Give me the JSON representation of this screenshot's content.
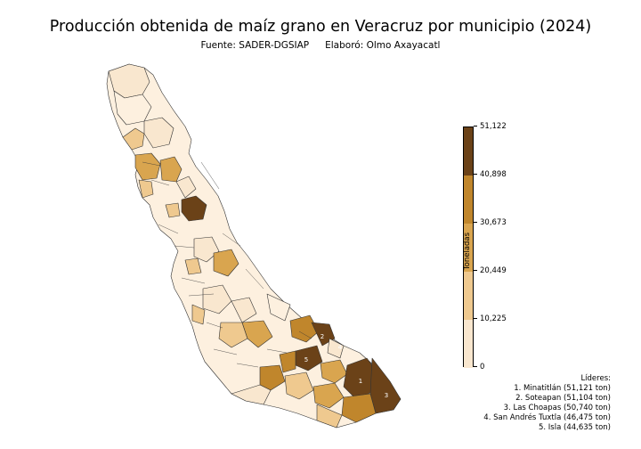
{
  "header": {
    "title": "Producción obtenida de maíz grano en Veracruz por municipio (2024)",
    "source": "Fuente: SADER-DGSIAP",
    "author": "Elaboró: Olmo Axayacatl"
  },
  "colorbar": {
    "label": "Toneladas",
    "ticks": [
      "51,122",
      "40,898",
      "30,673",
      "20,449",
      "10,225",
      "0"
    ],
    "colors": [
      "#6b4218",
      "#c0862c",
      "#d9a54f",
      "#efc98f",
      "#f9e7cf"
    ]
  },
  "leaders": {
    "heading": "Líderes:",
    "items": [
      "1. Minatitlán (51,121 ton)",
      "2. Soteapan (51,104 ton)",
      "3. Las Choapas (50,740 ton)",
      "4. San Andrés Tuxtla (46,475 ton)",
      "5. Isla (44,635 ton)"
    ]
  },
  "map_markers": [
    "1",
    "2",
    "3",
    "4",
    "5"
  ]
}
